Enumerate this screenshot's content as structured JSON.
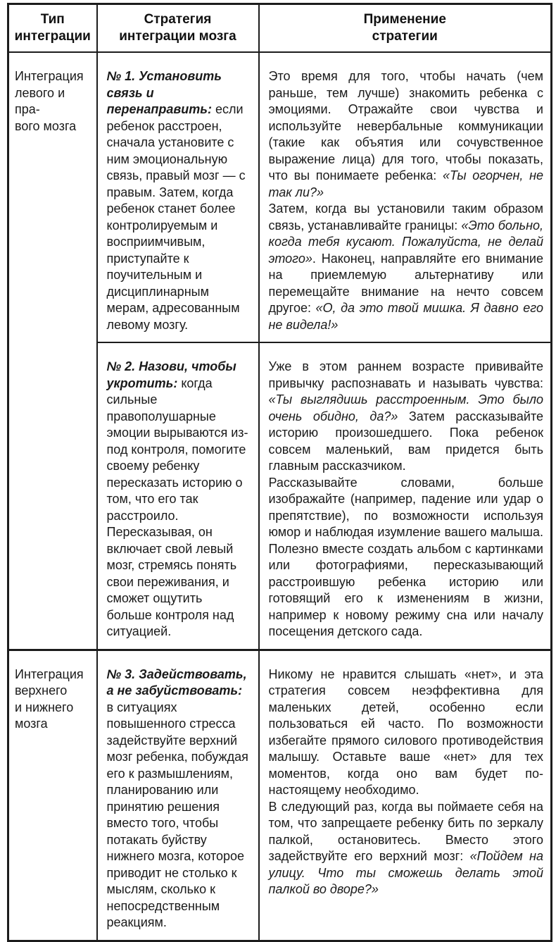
{
  "page": {
    "background_color": "#ffffff",
    "text_color": "#1a1a1a",
    "border_color": "#1c1c1c"
  },
  "table": {
    "headers": [
      {
        "id": "type",
        "label": "Тип\nинтеграции"
      },
      {
        "id": "strategy",
        "label": "Стратегия\nинтеграции мозга"
      },
      {
        "id": "application",
        "label": "Применение\nстратегии"
      }
    ],
    "rows": [
      {
        "integration_type": {
          "text": "Интеграция\nлевого и пра-\nвого мозга",
          "rowspan": 2
        },
        "strategy": [
          [
            {
              "t": "№ 1. Установить связь и перенаправить: ",
              "s": "bi"
            },
            {
              "t": "если ребенок расстроен, сначала установите с ним эмоциональную связь, правый мозг — с правым. Затем, когда ребенок станет более контролируемым и восприимчивым, приступайте к поучительным и дисциплинарным мерам, адресованным левому мозгу.",
              "s": "r"
            }
          ]
        ],
        "application": [
          [
            {
              "t": "Это время для того, чтобы начать (чем раньше, тем лучше) знакомить ребенка с эмоциями. Отражайте свои чувства и используйте невербальные коммуникации (такие как объятия или сочувственное выражение лица) для того, чтобы показать, что вы понимаете ребенка: ",
              "s": "r"
            },
            {
              "t": "«Ты огорчен, не так ли?»",
              "s": "i"
            }
          ],
          [
            {
              "t": "Затем, когда вы установили таким образом связь, устанавливайте границы: ",
              "s": "r"
            },
            {
              "t": "«Это больно, когда тебя кусают. Пожалуйста, не делай этого»",
              "s": "i"
            },
            {
              "t": ". Наконец, направляйте его внимание на приемлемую альтернативу или перемещайте внимание на нечто совсем другое: ",
              "s": "r"
            },
            {
              "t": "«О, да это твой мишка. Я давно его не видела!»",
              "s": "i"
            }
          ]
        ]
      },
      {
        "integration_type": null,
        "strategy": [
          [
            {
              "t": "№ 2. Назови, чтобы укротить: ",
              "s": "bi"
            },
            {
              "t": "когда сильные правополушарные эмоции вырываются из-под контроля, помогите своему ребенку пересказать историю о том, что его так расстроило. Пересказывая, он включает свой левый мозг, стремясь понять свои переживания, и сможет ощутить больше контроля над ситуацией.",
              "s": "r"
            }
          ]
        ],
        "application": [
          [
            {
              "t": "Уже в этом раннем возрасте прививайте привычку распознавать и называть чувства: ",
              "s": "r"
            },
            {
              "t": "«Ты выглядишь расстроенным. Это было очень обидно, да?»",
              "s": "i"
            },
            {
              "t": " Затем рассказывайте историю произошедшего. Пока ребенок совсем маленький, вам придется быть главным рассказчиком.",
              "s": "r"
            }
          ],
          [
            {
              "t": "Рассказывайте словами, больше изображайте (например, падение или удар о препятствие), по возможности используя юмор и наблюдая изумление вашего малыша. Полезно вместе создать альбом с картинками или фотографиями, пересказывающий расстроившую ребенка историю или готовящий его к изменениям в жизни, например к новому режиму сна или началу посещения детского сада.",
              "s": "r"
            }
          ]
        ]
      },
      {
        "integration_type": {
          "text": "Интеграция\nверхнего\nи нижнего\nмозга",
          "rowspan": 1
        },
        "strategy": [
          [
            {
              "t": "№ 3. Задействовать, а не забуйствовать: ",
              "s": "bi"
            },
            {
              "t": "в ситуациях повышенного стресса задействуйте верхний мозг ребенка, побуждая его к размышлениям, планированию или принятию решения вместо того, чтобы потакать буйству нижнего мозга, которое приводит не столько к мыслям, сколько к непосредственным реакциям.",
              "s": "r"
            }
          ]
        ],
        "application": [
          [
            {
              "t": "Никому не нравится слышать «нет», и эта стратегия совсем неэффективна для маленьких детей, особенно если пользоваться ей часто. По возможности избегайте прямого силового противодействия малышу. Оставьте ваше «нет» для тех моментов, когда оно вам будет по-настоящему необходимо.",
              "s": "r"
            }
          ],
          [
            {
              "t": "В следующий раз, когда вы поймаете себя на том, что запрещаете ребенку бить по зеркалу палкой, остановитесь. Вместо этого задействуйте его верхний мозг: ",
              "s": "r"
            },
            {
              "t": "«Пойдем на улицу. Что ты сможешь делать этой палкой во дворе?»",
              "s": "i"
            }
          ]
        ]
      }
    ]
  }
}
